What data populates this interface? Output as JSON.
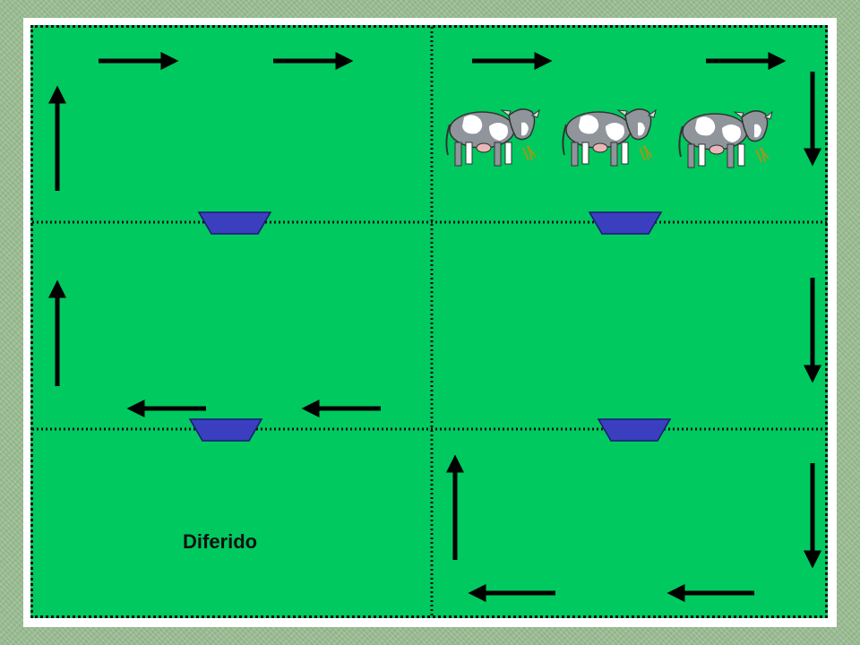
{
  "diagram": {
    "label": "Diferido",
    "colors": {
      "background": "#9cbf94",
      "pasture": "#00c95f",
      "fence": "#111111",
      "trough": "#3b3fbf",
      "arrow": "#000000"
    },
    "paddocks": 6,
    "cattle_count": 3,
    "troughs": 4,
    "arrows": 14
  }
}
